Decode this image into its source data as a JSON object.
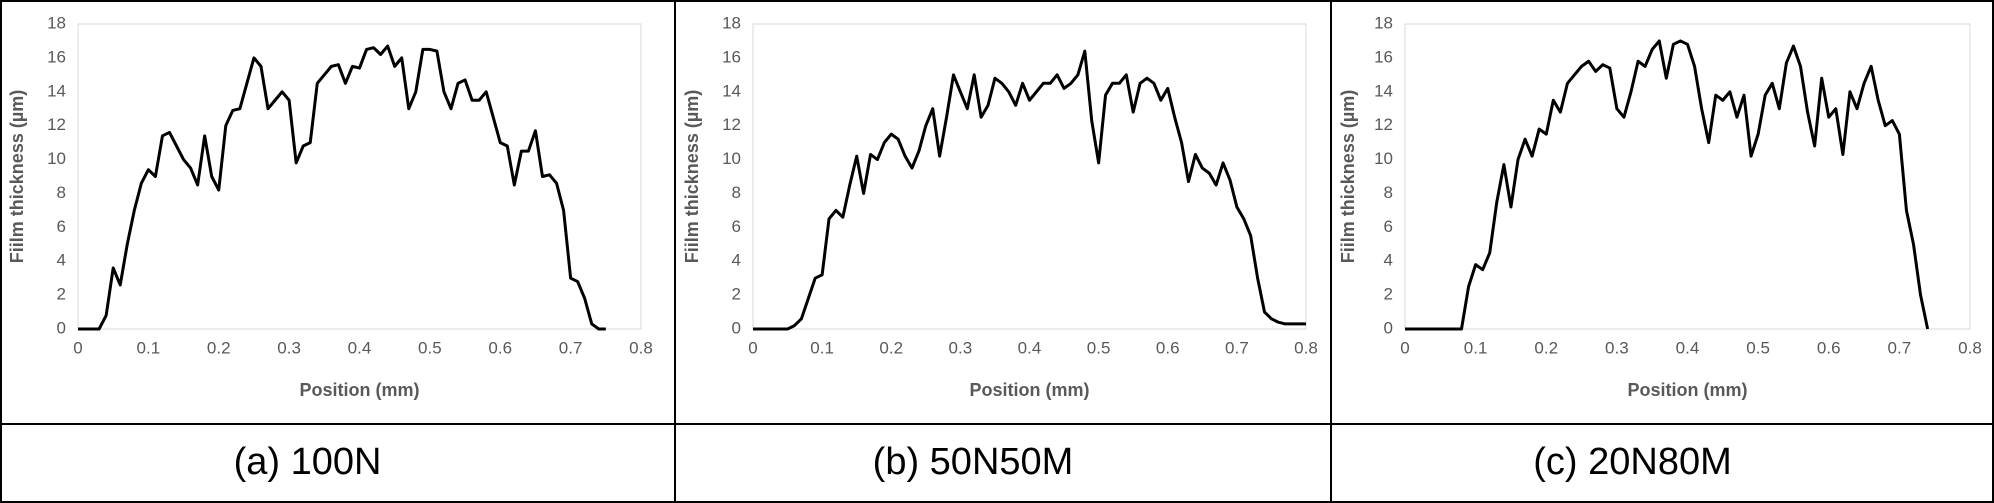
{
  "chart_data": [
    {
      "type": "line",
      "title": "(a) 100N",
      "x_label": "Position (mm)",
      "y_label": "Fiilm thickness (µm)",
      "xlim": [
        0,
        0.8
      ],
      "ylim": [
        0,
        18
      ],
      "xticks": [
        0,
        0.1,
        0.2,
        0.3,
        0.4,
        0.5,
        0.6,
        0.7,
        0.8
      ],
      "yticks": [
        0,
        2,
        4,
        6,
        8,
        10,
        12,
        14,
        16,
        18
      ],
      "grid": false,
      "x": [
        0,
        0.01,
        0.02,
        0.03,
        0.04,
        0.05,
        0.06,
        0.07,
        0.08,
        0.09,
        0.1,
        0.11,
        0.12,
        0.13,
        0.14,
        0.15,
        0.16,
        0.17,
        0.18,
        0.19,
        0.2,
        0.21,
        0.22,
        0.23,
        0.24,
        0.25,
        0.26,
        0.27,
        0.28,
        0.29,
        0.3,
        0.31,
        0.32,
        0.33,
        0.34,
        0.35,
        0.36,
        0.37,
        0.38,
        0.39,
        0.4,
        0.41,
        0.42,
        0.43,
        0.44,
        0.45,
        0.46,
        0.47,
        0.48,
        0.49,
        0.5,
        0.51,
        0.52,
        0.53,
        0.54,
        0.55,
        0.56,
        0.57,
        0.58,
        0.59,
        0.6,
        0.61,
        0.62,
        0.63,
        0.64,
        0.65,
        0.66,
        0.67,
        0.68,
        0.69,
        0.7,
        0.71,
        0.72,
        0.73,
        0.74,
        0.75
      ],
      "series": [
        {
          "color": "#000000",
          "values": [
            0,
            0,
            0,
            0,
            0.8,
            3.6,
            2.6,
            5,
            7,
            8.6,
            9.4,
            9,
            11.4,
            11.6,
            10.8,
            10,
            9.5,
            8.5,
            11.4,
            9,
            8.2,
            12,
            12.9,
            13,
            14.5,
            16,
            15.5,
            13,
            13.5,
            14,
            13.5,
            9.8,
            10.8,
            11,
            14.5,
            15,
            15.5,
            15.6,
            14.5,
            15.5,
            15.4,
            16.5,
            16.6,
            16.2,
            16.7,
            15.5,
            16,
            13,
            14,
            16.5,
            16.5,
            16.4,
            14,
            13,
            14.5,
            14.7,
            13.5,
            13.5,
            14,
            12.5,
            11,
            10.8,
            8.5,
            10.5,
            10.5,
            11.7,
            9,
            9.1,
            8.6,
            7,
            3,
            2.8,
            1.8,
            0.3,
            0,
            0
          ]
        }
      ]
    },
    {
      "type": "line",
      "title": "(b) 50N50M",
      "x_label": "Position (mm)",
      "y_label": "Fiilm thickness (µm)",
      "xlim": [
        0,
        0.8
      ],
      "ylim": [
        0,
        18
      ],
      "xticks": [
        0,
        0.1,
        0.2,
        0.3,
        0.4,
        0.5,
        0.6,
        0.7,
        0.8
      ],
      "yticks": [
        0,
        2,
        4,
        6,
        8,
        10,
        12,
        14,
        16,
        18
      ],
      "grid": false,
      "x": [
        0,
        0.01,
        0.02,
        0.03,
        0.04,
        0.05,
        0.06,
        0.07,
        0.08,
        0.09,
        0.1,
        0.11,
        0.12,
        0.13,
        0.14,
        0.15,
        0.16,
        0.17,
        0.18,
        0.19,
        0.2,
        0.21,
        0.22,
        0.23,
        0.24,
        0.25,
        0.26,
        0.27,
        0.28,
        0.29,
        0.3,
        0.31,
        0.32,
        0.33,
        0.34,
        0.35,
        0.36,
        0.37,
        0.38,
        0.39,
        0.4,
        0.41,
        0.42,
        0.43,
        0.44,
        0.45,
        0.46,
        0.47,
        0.48,
        0.49,
        0.5,
        0.51,
        0.52,
        0.53,
        0.54,
        0.55,
        0.56,
        0.57,
        0.58,
        0.59,
        0.6,
        0.61,
        0.62,
        0.63,
        0.64,
        0.65,
        0.66,
        0.67,
        0.68,
        0.69,
        0.7,
        0.71,
        0.72,
        0.73,
        0.74,
        0.75,
        0.76,
        0.77,
        0.78,
        0.79,
        0.8
      ],
      "series": [
        {
          "color": "#000000",
          "values": [
            0,
            0,
            0,
            0,
            0,
            0,
            0.2,
            0.6,
            1.8,
            3,
            3.2,
            6.5,
            7,
            6.6,
            8.5,
            10.2,
            8,
            10.3,
            10,
            11,
            11.5,
            11.2,
            10.2,
            9.5,
            10.5,
            12,
            13,
            10.2,
            12.5,
            15,
            14,
            13,
            15,
            12.5,
            13.2,
            14.8,
            14.5,
            14,
            13.2,
            14.5,
            13.5,
            14,
            14.5,
            14.5,
            15,
            14.2,
            14.5,
            15,
            16.4,
            12.3,
            9.8,
            13.8,
            14.5,
            14.5,
            15,
            12.8,
            14.5,
            14.8,
            14.5,
            13.5,
            14.2,
            12.5,
            11,
            8.7,
            10.3,
            9.5,
            9.2,
            8.5,
            9.8,
            8.8,
            7.2,
            6.5,
            5.5,
            3,
            1,
            0.6,
            0.4,
            0.3,
            0.3,
            0.3,
            0.3
          ]
        }
      ]
    },
    {
      "type": "line",
      "title": "(c) 20N80M",
      "x_label": "Position (mm)",
      "y_label": "Fiilm thickness (µm)",
      "xlim": [
        0,
        0.8
      ],
      "ylim": [
        0,
        18
      ],
      "xticks": [
        0,
        0.1,
        0.2,
        0.3,
        0.4,
        0.5,
        0.6,
        0.7,
        0.8
      ],
      "yticks": [
        0,
        2,
        4,
        6,
        8,
        10,
        12,
        14,
        16,
        18
      ],
      "grid": false,
      "x": [
        0,
        0.01,
        0.02,
        0.03,
        0.04,
        0.05,
        0.06,
        0.07,
        0.08,
        0.09,
        0.1,
        0.11,
        0.12,
        0.13,
        0.14,
        0.15,
        0.16,
        0.17,
        0.18,
        0.19,
        0.2,
        0.21,
        0.22,
        0.23,
        0.24,
        0.25,
        0.26,
        0.27,
        0.28,
        0.29,
        0.3,
        0.31,
        0.32,
        0.33,
        0.34,
        0.35,
        0.36,
        0.37,
        0.38,
        0.39,
        0.4,
        0.41,
        0.42,
        0.43,
        0.44,
        0.45,
        0.46,
        0.47,
        0.48,
        0.49,
        0.5,
        0.51,
        0.52,
        0.53,
        0.54,
        0.55,
        0.56,
        0.57,
        0.58,
        0.59,
        0.6,
        0.61,
        0.62,
        0.63,
        0.64,
        0.65,
        0.66,
        0.67,
        0.68,
        0.69,
        0.7,
        0.71,
        0.72,
        0.73,
        0.74
      ],
      "series": [
        {
          "color": "#000000",
          "values": [
            0,
            0,
            0,
            0,
            0,
            0,
            0,
            0,
            0,
            2.5,
            3.8,
            3.5,
            4.5,
            7.5,
            9.7,
            7.2,
            10,
            11.2,
            10.2,
            11.8,
            11.5,
            13.5,
            12.8,
            14.5,
            15,
            15.5,
            15.8,
            15.2,
            15.6,
            15.4,
            13,
            12.5,
            14,
            15.8,
            15.5,
            16.5,
            17,
            14.8,
            16.8,
            17,
            16.8,
            15.5,
            13,
            11,
            13.8,
            13.5,
            14,
            12.5,
            13.8,
            10.2,
            11.5,
            13.8,
            14.5,
            13,
            15.7,
            16.7,
            15.5,
            12.8,
            10.8,
            14.8,
            12.5,
            13,
            10.3,
            14,
            13,
            14.5,
            15.5,
            13.5,
            12,
            12.3,
            11.5,
            7,
            5,
            2,
            0
          ]
        }
      ]
    }
  ]
}
